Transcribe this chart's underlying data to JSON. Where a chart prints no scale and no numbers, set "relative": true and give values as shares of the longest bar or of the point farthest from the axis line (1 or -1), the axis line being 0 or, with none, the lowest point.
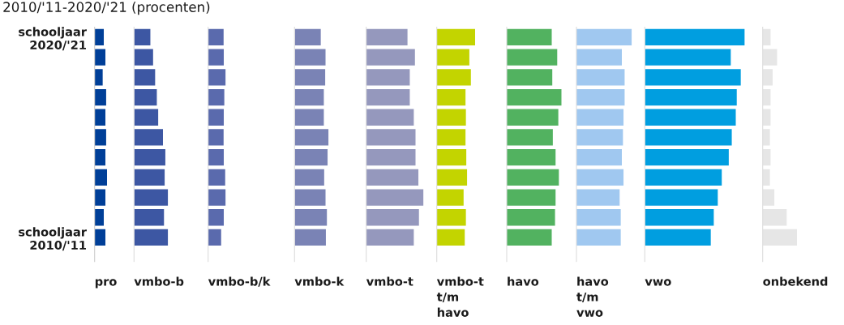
{
  "chart_data": [
    {
      "type": "bar",
      "orientation": "horizontal",
      "relative": true,
      "title": "2010/'11-2020/'21 (procenten)",
      "xlabel": "pro",
      "tick_labels": "y",
      "categories": [
        "schooljaar\n2020/'21",
        null,
        null,
        null,
        null,
        null,
        null,
        null,
        null,
        null,
        "schooljaar\n2010/'11"
      ],
      "series": [
        {
          "color": "#003f98",
          "values": [
            0.74,
            0.87,
            0.65,
            0.93,
            0.87,
            0.93,
            0.87,
            1,
            0.87,
            0.74,
            0.87
          ]
        }
      ]
    },
    {
      "type": "bar",
      "orientation": "horizontal",
      "relative": true,
      "xlabel": "vmbo-b",
      "series": [
        {
          "color": "#3d57a3",
          "values": [
            0.48,
            0.56,
            0.62,
            0.67,
            0.71,
            0.85,
            0.92,
            0.9,
            1,
            0.88,
            1
          ]
        }
      ]
    },
    {
      "type": "bar",
      "orientation": "horizontal",
      "relative": true,
      "xlabel": "vmbo-b/k",
      "series": [
        {
          "color": "#5a6aad",
          "values": [
            0.88,
            0.89,
            1,
            0.92,
            0.89,
            0.88,
            0.89,
            0.97,
            1,
            0.89,
            0.74
          ]
        }
      ]
    },
    {
      "type": "bar",
      "orientation": "horizontal",
      "relative": true,
      "xlabel": "vmbo-k",
      "series": [
        {
          "color": "#7a83b5",
          "values": [
            0.77,
            0.91,
            0.9,
            0.86,
            0.86,
            1,
            0.97,
            0.87,
            0.91,
            0.95,
            0.92
          ]
        }
      ]
    },
    {
      "type": "bar",
      "orientation": "horizontal",
      "relative": true,
      "xlabel": "vmbo-t",
      "series": [
        {
          "color": "#9598bd",
          "values": [
            0.72,
            0.85,
            0.76,
            0.76,
            0.83,
            0.86,
            0.86,
            0.91,
            1,
            0.92,
            0.83
          ]
        }
      ]
    },
    {
      "type": "bar",
      "orientation": "horizontal",
      "relative": true,
      "xlabel": "vmbo-t\nt/m\nhavo",
      "series": [
        {
          "color": "#c3d400",
          "values": [
            1,
            0.85,
            0.89,
            0.75,
            0.76,
            0.75,
            0.77,
            0.79,
            0.7,
            0.76,
            0.73
          ]
        }
      ]
    },
    {
      "type": "bar",
      "orientation": "horizontal",
      "relative": true,
      "xlabel": "havo",
      "series": [
        {
          "color": "#52b260",
          "values": [
            0.82,
            0.92,
            0.83,
            1,
            0.94,
            0.84,
            0.89,
            0.95,
            0.89,
            0.88,
            0.82
          ]
        }
      ]
    },
    {
      "type": "bar",
      "orientation": "horizontal",
      "relative": true,
      "xlabel": "havo\nt/m\nvwo",
      "series": [
        {
          "color": "#a0c8f0",
          "values": [
            1,
            0.82,
            0.87,
            0.87,
            0.85,
            0.84,
            0.82,
            0.85,
            0.78,
            0.8,
            0.8
          ]
        }
      ]
    },
    {
      "type": "bar",
      "orientation": "horizontal",
      "relative": true,
      "xlabel": "vwo",
      "series": [
        {
          "color": "#009ee0",
          "values": [
            1,
            0.86,
            0.96,
            0.92,
            0.91,
            0.87,
            0.84,
            0.77,
            0.73,
            0.69,
            0.66
          ]
        }
      ]
    },
    {
      "type": "bar",
      "orientation": "horizontal",
      "relative": true,
      "xlabel": "onbekend",
      "series": [
        {
          "color": "#e6e6e6",
          "values": [
            0.23,
            0.42,
            0.29,
            0.23,
            0.23,
            0.21,
            0.23,
            0.21,
            0.34,
            0.7,
            1
          ]
        }
      ]
    }
  ]
}
